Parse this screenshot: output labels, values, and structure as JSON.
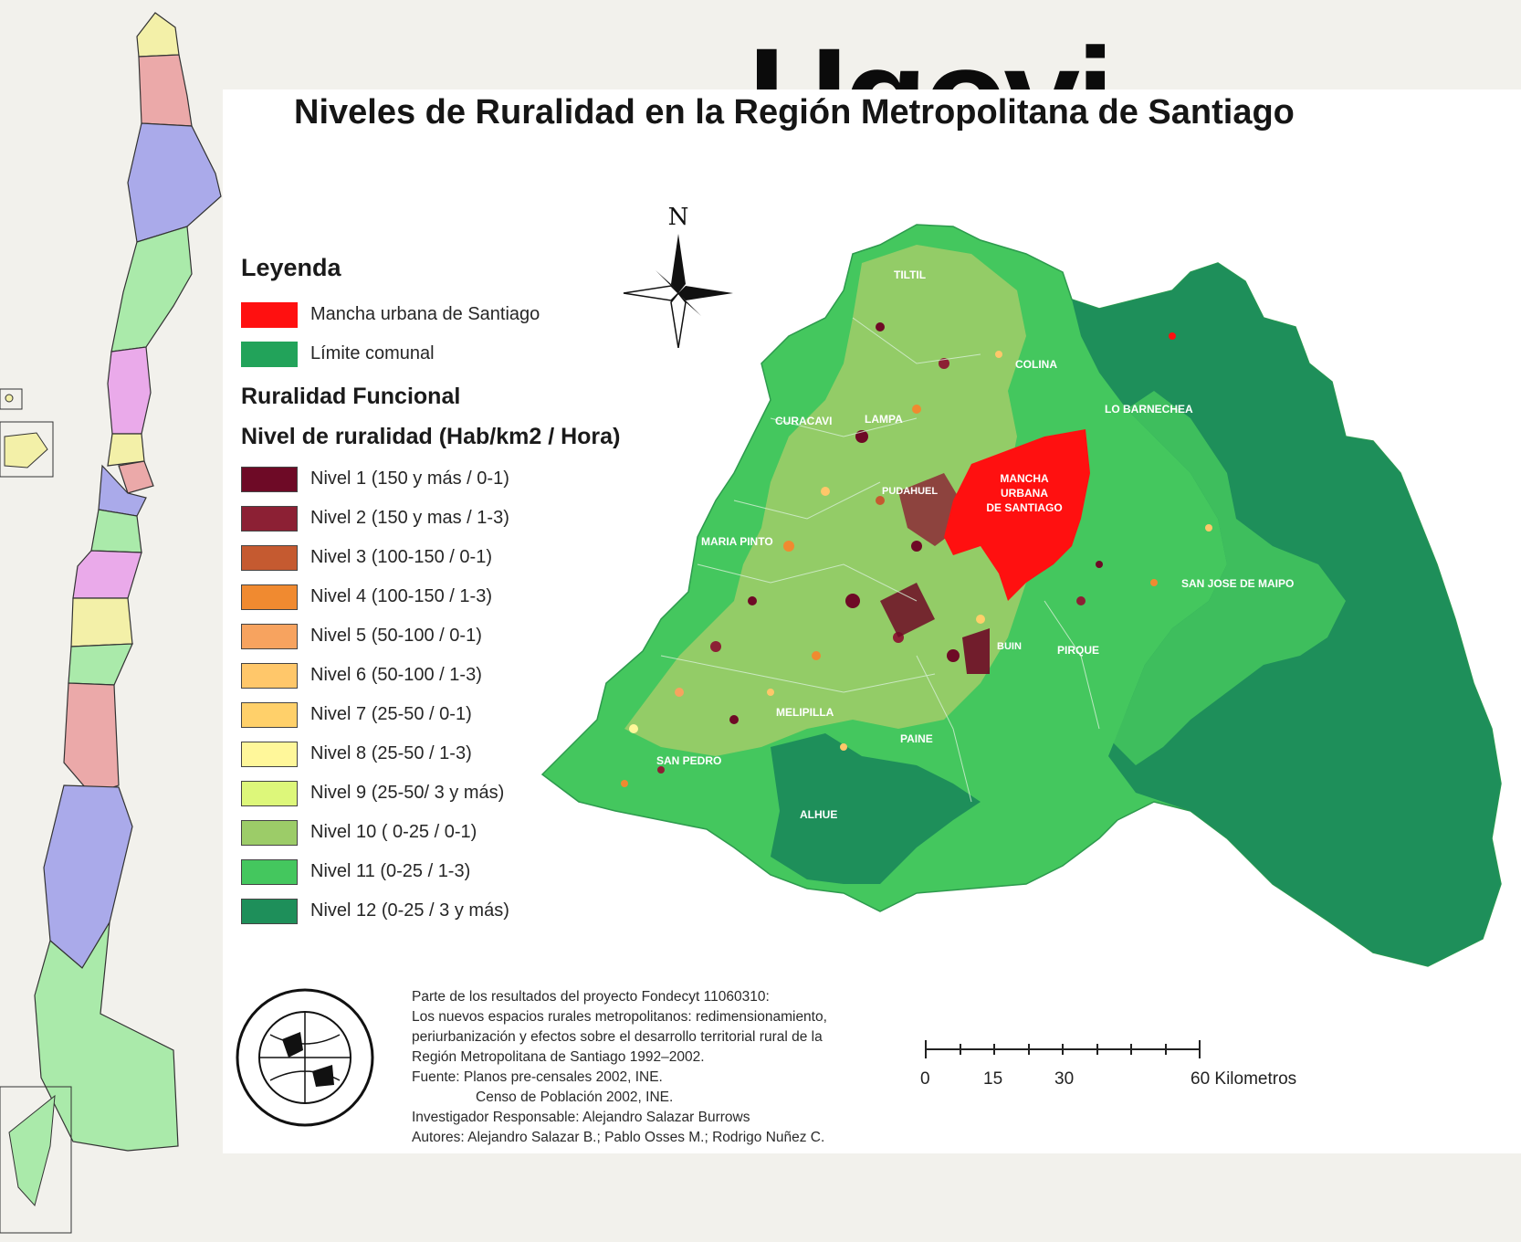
{
  "map_title": "Niveles de Ruralidad en la Región Metropolitana de Santiago",
  "north_label": "N",
  "legend": {
    "heading": "Leyenda",
    "base_items": [
      {
        "label": "Mancha urbana de Santiago",
        "color": "#ff1010"
      },
      {
        "label": "Límite comunal",
        "color": "#22a35a"
      }
    ],
    "subheading": "Ruralidad Funcional",
    "level_heading": "Nivel de ruralidad (Hab/km2 / Hora)",
    "levels": [
      {
        "label": "Nivel 1 (150 y más / 0-1)",
        "color": "#6e0a26"
      },
      {
        "label": "Nivel 2 (150 y mas / 1-3)",
        "color": "#8c2034"
      },
      {
        "label": "Nivel 3 (100-150 / 0-1)",
        "color": "#c55a30"
      },
      {
        "label": "Nivel 4 (100-150 / 1-3)",
        "color": "#f08a30"
      },
      {
        "label": "Nivel 5 (50-100 / 0-1)",
        "color": "#f7a35f"
      },
      {
        "label": "Nivel 6 (50-100 / 1-3)",
        "color": "#ffc76a"
      },
      {
        "label": "Nivel 7 (25-50 / 0-1)",
        "color": "#ffd06a"
      },
      {
        "label": "Nivel 8 (25-50 / 1-3)",
        "color": "#fff79a"
      },
      {
        "label": "Nivel 9 (25-50/ 3 y más)",
        "color": "#ddf77a"
      },
      {
        "label": "Nivel 10 ( 0-25 / 0-1)",
        "color": "#9ccc68"
      },
      {
        "label": "Nivel 11 (0-25 / 1-3)",
        "color": "#44c75e"
      },
      {
        "label": "Nivel 12 (0-25 / 3 y más)",
        "color": "#1e8f5a"
      }
    ]
  },
  "commune_labels": [
    "TILTIL",
    "COLINA",
    "LO BARNECHEA",
    "CURACAVI",
    "LAMPA",
    "PUDAHUEL",
    "MARIA PINTO",
    "SAN JOSE DE MAIPO",
    "BUIN",
    "PIRQUE",
    "MELIPILLA",
    "PAINE",
    "SAN PEDRO",
    "ALHUE"
  ],
  "urban_label": [
    "MANCHA",
    "URBANA",
    "DE SANTIAGO"
  ],
  "credits": [
    "Parte de los resultados del proyecto Fondecyt 11060310:",
    "Los nuevos espacios rurales metropolitanos: redimensionamiento,",
    "periurbanización y efectos sobre el desarrollo territorial rural de la",
    "Región Metropolitana de Santiago 1992–2002.",
    "Fuente: Planos pre-censales 2002, INE.",
    "Censo de Población 2002, INE.",
    "Investigador Responsable: Alejandro Salazar Burrows",
    "Autores: Alejandro Salazar B.; Pablo Osses M.; Rodrigo Nuñez C."
  ],
  "scale": {
    "ticks": [
      "0",
      "15",
      "30",
      "60 Kilometros"
    ]
  },
  "background_title_fragment": "Ugovi",
  "colors": {
    "urban": "#ff1010",
    "base_green": "#44c75e",
    "dark_green": "#1e8f5a"
  }
}
